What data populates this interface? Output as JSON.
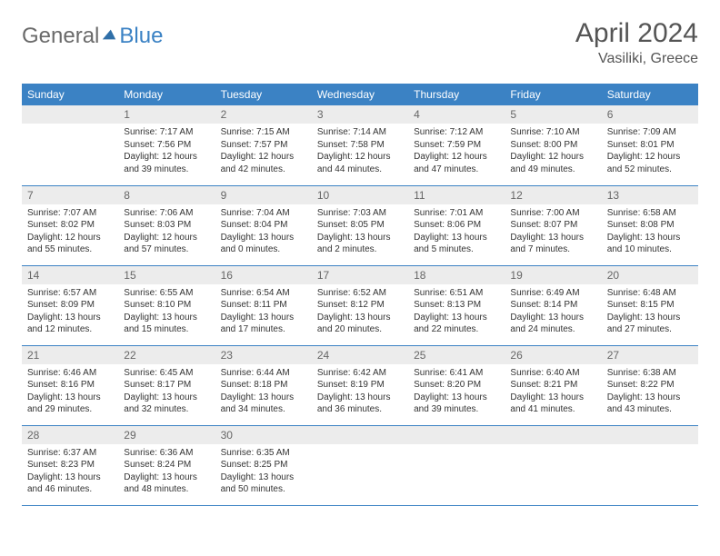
{
  "logo": {
    "word1": "General",
    "word2": "Blue",
    "icon_name": "triangle-icon",
    "icon_color": "#2f6fa8"
  },
  "header": {
    "month": "April 2024",
    "location": "Vasiliki, Greece"
  },
  "columns": [
    "Sunday",
    "Monday",
    "Tuesday",
    "Wednesday",
    "Thursday",
    "Friday",
    "Saturday"
  ],
  "colors": {
    "accent": "#3b82c4",
    "row_alt": "#ececec"
  },
  "weeks": [
    [
      null,
      {
        "n": "1",
        "sr": "Sunrise: 7:17 AM",
        "ss": "Sunset: 7:56 PM",
        "d1": "Daylight: 12 hours",
        "d2": "and 39 minutes."
      },
      {
        "n": "2",
        "sr": "Sunrise: 7:15 AM",
        "ss": "Sunset: 7:57 PM",
        "d1": "Daylight: 12 hours",
        "d2": "and 42 minutes."
      },
      {
        "n": "3",
        "sr": "Sunrise: 7:14 AM",
        "ss": "Sunset: 7:58 PM",
        "d1": "Daylight: 12 hours",
        "d2": "and 44 minutes."
      },
      {
        "n": "4",
        "sr": "Sunrise: 7:12 AM",
        "ss": "Sunset: 7:59 PM",
        "d1": "Daylight: 12 hours",
        "d2": "and 47 minutes."
      },
      {
        "n": "5",
        "sr": "Sunrise: 7:10 AM",
        "ss": "Sunset: 8:00 PM",
        "d1": "Daylight: 12 hours",
        "d2": "and 49 minutes."
      },
      {
        "n": "6",
        "sr": "Sunrise: 7:09 AM",
        "ss": "Sunset: 8:01 PM",
        "d1": "Daylight: 12 hours",
        "d2": "and 52 minutes."
      }
    ],
    [
      {
        "n": "7",
        "sr": "Sunrise: 7:07 AM",
        "ss": "Sunset: 8:02 PM",
        "d1": "Daylight: 12 hours",
        "d2": "and 55 minutes."
      },
      {
        "n": "8",
        "sr": "Sunrise: 7:06 AM",
        "ss": "Sunset: 8:03 PM",
        "d1": "Daylight: 12 hours",
        "d2": "and 57 minutes."
      },
      {
        "n": "9",
        "sr": "Sunrise: 7:04 AM",
        "ss": "Sunset: 8:04 PM",
        "d1": "Daylight: 13 hours",
        "d2": "and 0 minutes."
      },
      {
        "n": "10",
        "sr": "Sunrise: 7:03 AM",
        "ss": "Sunset: 8:05 PM",
        "d1": "Daylight: 13 hours",
        "d2": "and 2 minutes."
      },
      {
        "n": "11",
        "sr": "Sunrise: 7:01 AM",
        "ss": "Sunset: 8:06 PM",
        "d1": "Daylight: 13 hours",
        "d2": "and 5 minutes."
      },
      {
        "n": "12",
        "sr": "Sunrise: 7:00 AM",
        "ss": "Sunset: 8:07 PM",
        "d1": "Daylight: 13 hours",
        "d2": "and 7 minutes."
      },
      {
        "n": "13",
        "sr": "Sunrise: 6:58 AM",
        "ss": "Sunset: 8:08 PM",
        "d1": "Daylight: 13 hours",
        "d2": "and 10 minutes."
      }
    ],
    [
      {
        "n": "14",
        "sr": "Sunrise: 6:57 AM",
        "ss": "Sunset: 8:09 PM",
        "d1": "Daylight: 13 hours",
        "d2": "and 12 minutes."
      },
      {
        "n": "15",
        "sr": "Sunrise: 6:55 AM",
        "ss": "Sunset: 8:10 PM",
        "d1": "Daylight: 13 hours",
        "d2": "and 15 minutes."
      },
      {
        "n": "16",
        "sr": "Sunrise: 6:54 AM",
        "ss": "Sunset: 8:11 PM",
        "d1": "Daylight: 13 hours",
        "d2": "and 17 minutes."
      },
      {
        "n": "17",
        "sr": "Sunrise: 6:52 AM",
        "ss": "Sunset: 8:12 PM",
        "d1": "Daylight: 13 hours",
        "d2": "and 20 minutes."
      },
      {
        "n": "18",
        "sr": "Sunrise: 6:51 AM",
        "ss": "Sunset: 8:13 PM",
        "d1": "Daylight: 13 hours",
        "d2": "and 22 minutes."
      },
      {
        "n": "19",
        "sr": "Sunrise: 6:49 AM",
        "ss": "Sunset: 8:14 PM",
        "d1": "Daylight: 13 hours",
        "d2": "and 24 minutes."
      },
      {
        "n": "20",
        "sr": "Sunrise: 6:48 AM",
        "ss": "Sunset: 8:15 PM",
        "d1": "Daylight: 13 hours",
        "d2": "and 27 minutes."
      }
    ],
    [
      {
        "n": "21",
        "sr": "Sunrise: 6:46 AM",
        "ss": "Sunset: 8:16 PM",
        "d1": "Daylight: 13 hours",
        "d2": "and 29 minutes."
      },
      {
        "n": "22",
        "sr": "Sunrise: 6:45 AM",
        "ss": "Sunset: 8:17 PM",
        "d1": "Daylight: 13 hours",
        "d2": "and 32 minutes."
      },
      {
        "n": "23",
        "sr": "Sunrise: 6:44 AM",
        "ss": "Sunset: 8:18 PM",
        "d1": "Daylight: 13 hours",
        "d2": "and 34 minutes."
      },
      {
        "n": "24",
        "sr": "Sunrise: 6:42 AM",
        "ss": "Sunset: 8:19 PM",
        "d1": "Daylight: 13 hours",
        "d2": "and 36 minutes."
      },
      {
        "n": "25",
        "sr": "Sunrise: 6:41 AM",
        "ss": "Sunset: 8:20 PM",
        "d1": "Daylight: 13 hours",
        "d2": "and 39 minutes."
      },
      {
        "n": "26",
        "sr": "Sunrise: 6:40 AM",
        "ss": "Sunset: 8:21 PM",
        "d1": "Daylight: 13 hours",
        "d2": "and 41 minutes."
      },
      {
        "n": "27",
        "sr": "Sunrise: 6:38 AM",
        "ss": "Sunset: 8:22 PM",
        "d1": "Daylight: 13 hours",
        "d2": "and 43 minutes."
      }
    ],
    [
      {
        "n": "28",
        "sr": "Sunrise: 6:37 AM",
        "ss": "Sunset: 8:23 PM",
        "d1": "Daylight: 13 hours",
        "d2": "and 46 minutes."
      },
      {
        "n": "29",
        "sr": "Sunrise: 6:36 AM",
        "ss": "Sunset: 8:24 PM",
        "d1": "Daylight: 13 hours",
        "d2": "and 48 minutes."
      },
      {
        "n": "30",
        "sr": "Sunrise: 6:35 AM",
        "ss": "Sunset: 8:25 PM",
        "d1": "Daylight: 13 hours",
        "d2": "and 50 minutes."
      },
      null,
      null,
      null,
      null
    ]
  ]
}
